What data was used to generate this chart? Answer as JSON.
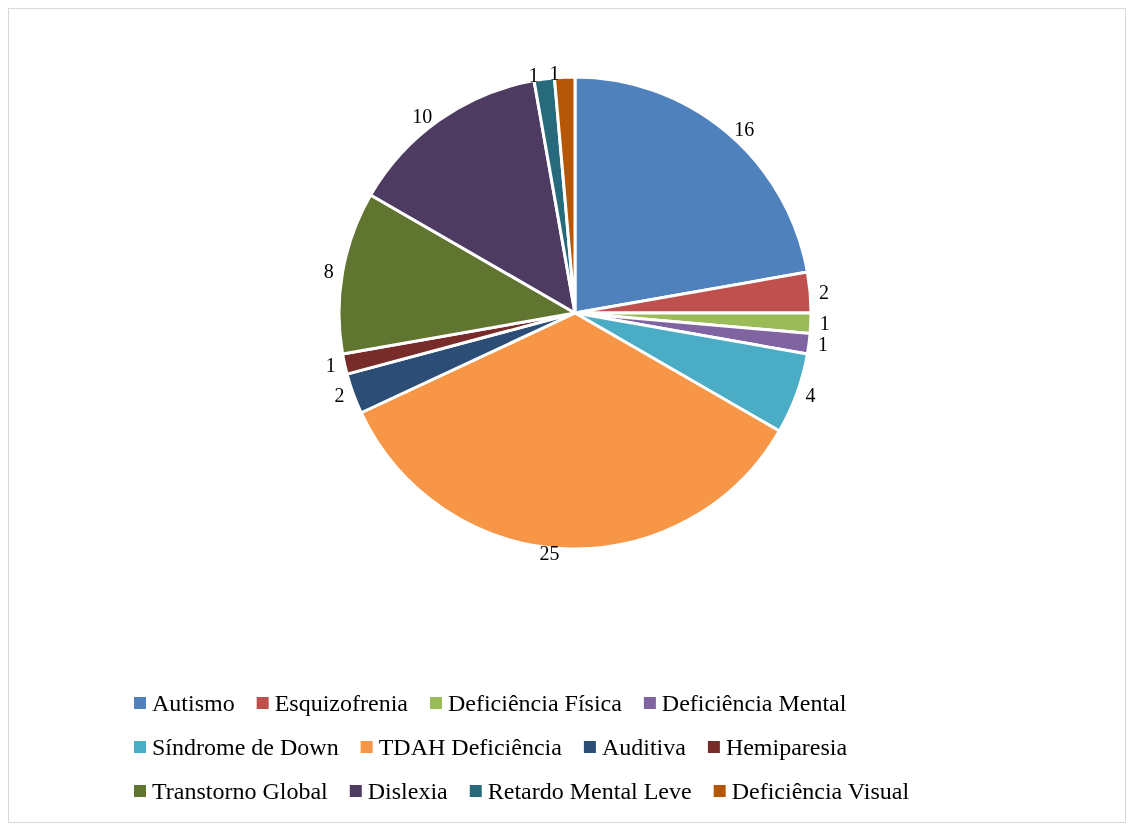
{
  "chart_data": {
    "type": "pie",
    "categories": [
      "Autismo",
      "Esquizofrenia",
      "Deficiência Física",
      "Deficiência Mental",
      "Síndrome de Down",
      "TDAH Deficiência",
      "Auditiva",
      "Hemiparesia",
      "Transtorno Global",
      "Dislexia",
      "Retardo Mental Leve",
      "Deficiência Visual"
    ],
    "values": [
      16,
      2,
      1,
      1,
      4,
      25,
      2,
      1,
      8,
      10,
      1,
      1
    ],
    "colors": [
      "#4f81bd",
      "#c0504d",
      "#9bbb59",
      "#8064a2",
      "#4bacc6",
      "#f79646",
      "#2c4d75",
      "#772c2a",
      "#5f7530",
      "#4d3b62",
      "#276a7c",
      "#b65708"
    ],
    "data_labels": true,
    "legend": "bottom"
  }
}
